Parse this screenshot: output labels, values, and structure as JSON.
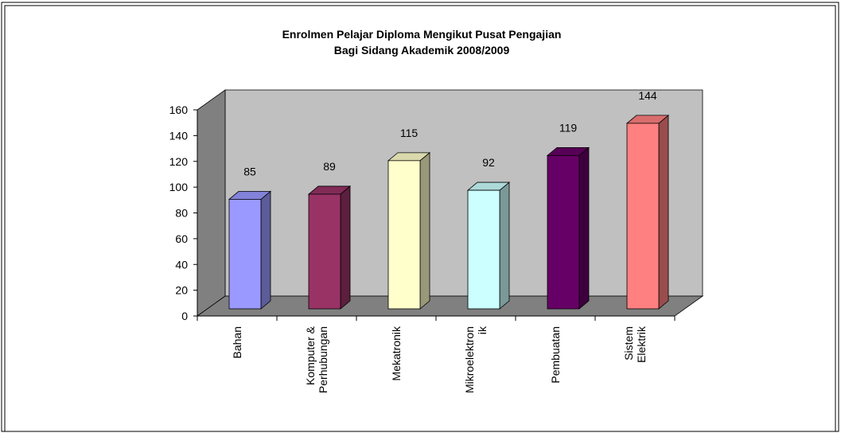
{
  "chart_data": {
    "type": "bar3d",
    "title": [
      "Enrolmen Pelajar Diploma Mengikut Pusat Pengajian",
      "Bagi Sidang Akademik 2008/2009"
    ],
    "categories": [
      "Bahan",
      "Komputer & Perhubungan",
      "Mekatronik",
      "Mikroelektronik",
      "Pembuatan",
      "Sistem Elektrik"
    ],
    "values": [
      85,
      89,
      115,
      92,
      119,
      144
    ],
    "colors": [
      "#9999ff",
      "#993366",
      "#ffffcc",
      "#ccffff",
      "#660066",
      "#ff8080"
    ],
    "ylim": [
      0,
      160
    ],
    "yticks": [
      0,
      20,
      40,
      60,
      80,
      100,
      120,
      140,
      160
    ],
    "grid": false
  }
}
